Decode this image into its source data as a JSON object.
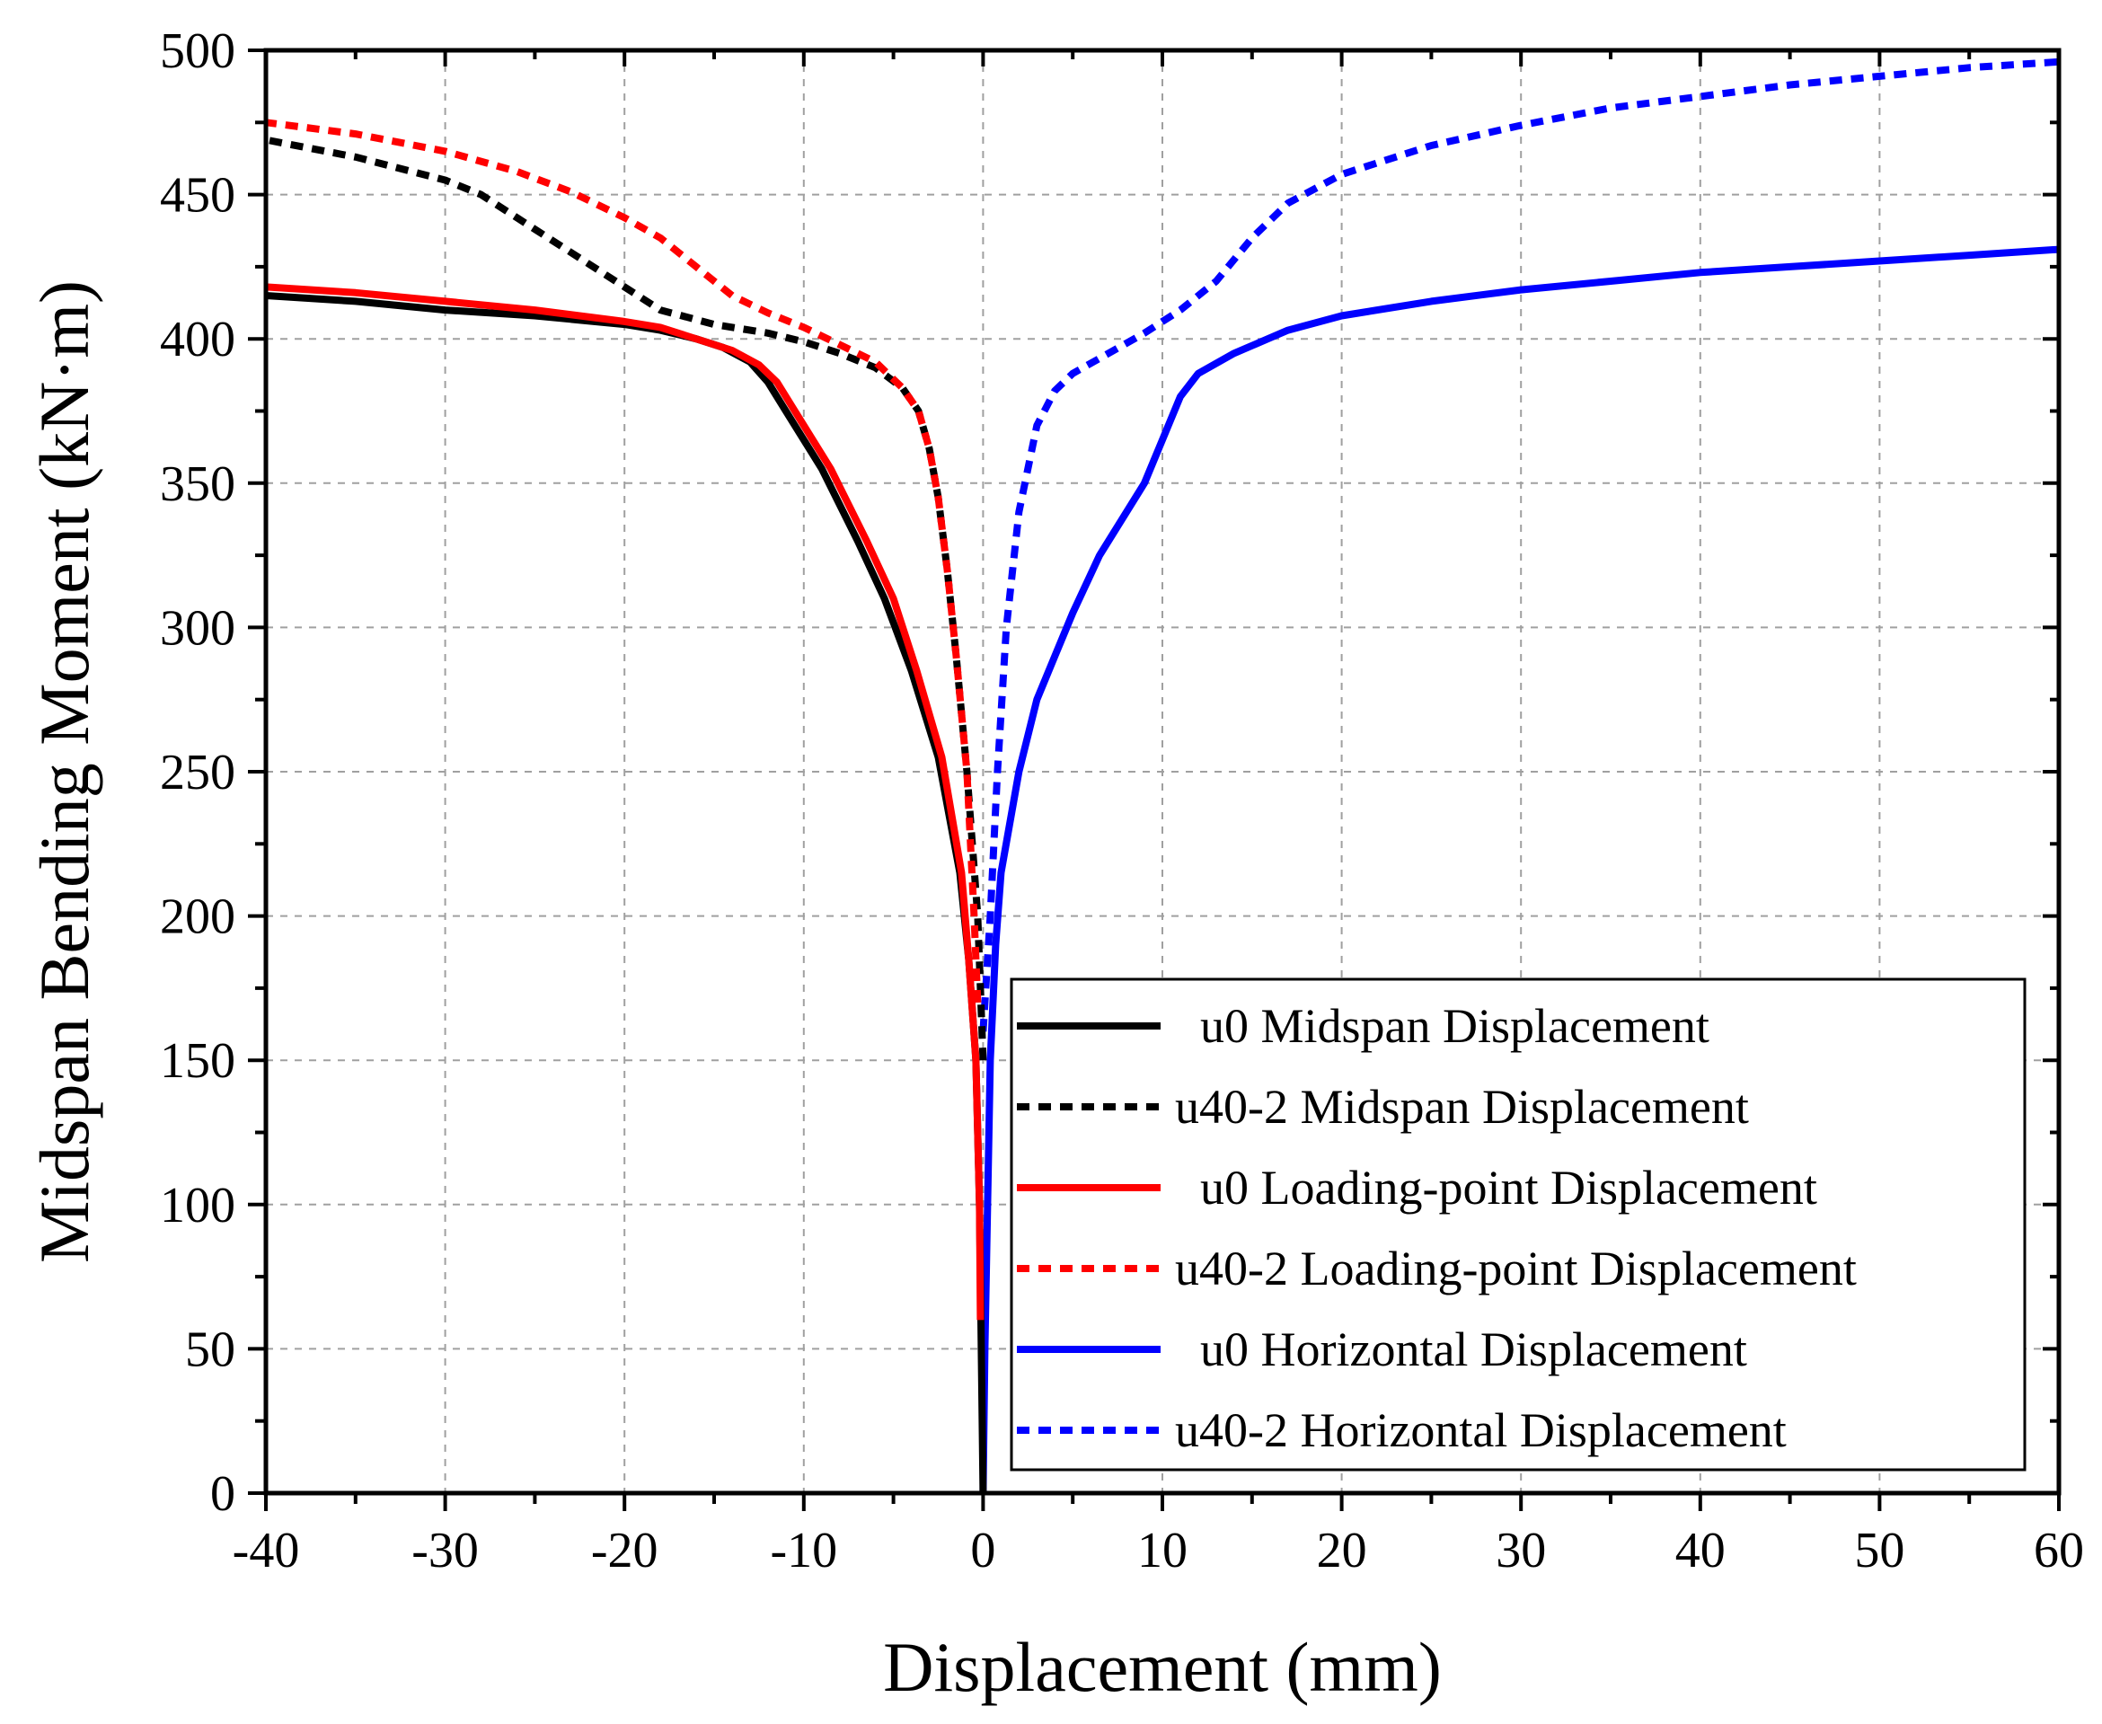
{
  "chart_data": {
    "type": "line",
    "title": "",
    "xlabel": "Displacement (mm)",
    "ylabel": "Midspan Bending Moment (kN·m)",
    "xlim": [
      -40,
      60
    ],
    "ylim": [
      0,
      500
    ],
    "xticks": [
      -40,
      -30,
      -20,
      -10,
      0,
      10,
      20,
      30,
      40,
      50,
      60
    ],
    "xtick_labels": [
      "-40",
      "-30",
      "-20",
      "-10",
      "0",
      "10",
      "20",
      "30",
      "40",
      "50",
      "60"
    ],
    "yticks": [
      0,
      50,
      100,
      150,
      200,
      250,
      300,
      350,
      400,
      450,
      500
    ],
    "ytick_labels": [
      "0",
      "50",
      "100",
      "150",
      "200",
      "250",
      "300",
      "350",
      "400",
      "450",
      "500"
    ],
    "grid": true,
    "legend_position": "bottom-right",
    "series": [
      {
        "name": "u0 Midspan Displacement",
        "color": "#000000",
        "style": "solid",
        "points": [
          [
            0,
            0
          ],
          [
            -0.1,
            50
          ],
          [
            -0.2,
            100
          ],
          [
            -0.4,
            150
          ],
          [
            -0.8,
            185
          ],
          [
            -1.3,
            215
          ],
          [
            -2.5,
            255
          ],
          [
            -4,
            285
          ],
          [
            -5.5,
            310
          ],
          [
            -7,
            330
          ],
          [
            -9,
            355
          ],
          [
            -11,
            375
          ],
          [
            -12,
            385
          ],
          [
            -13,
            392
          ],
          [
            -14.5,
            397
          ],
          [
            -16,
            400
          ],
          [
            -18,
            403
          ],
          [
            -20,
            405
          ],
          [
            -25,
            408
          ],
          [
            -30,
            410
          ],
          [
            -35,
            413
          ],
          [
            -40,
            415
          ]
        ]
      },
      {
        "name": "u40-2 Midspan Displacement",
        "color": "#000000",
        "style": "dashed",
        "points": [
          [
            0,
            150
          ],
          [
            -0.3,
            200
          ],
          [
            -0.9,
            250
          ],
          [
            -1.5,
            290
          ],
          [
            -2,
            320
          ],
          [
            -2.5,
            345
          ],
          [
            -3,
            362
          ],
          [
            -3.6,
            375
          ],
          [
            -4.5,
            383
          ],
          [
            -6,
            390
          ],
          [
            -8,
            395
          ],
          [
            -10,
            399
          ],
          [
            -12,
            402
          ],
          [
            -15,
            405
          ],
          [
            -18,
            410
          ],
          [
            -20,
            418
          ],
          [
            -23,
            430
          ],
          [
            -26,
            442
          ],
          [
            -28,
            450
          ],
          [
            -30,
            455
          ],
          [
            -35,
            463
          ],
          [
            -40,
            469
          ]
        ]
      },
      {
        "name": "u0 Loading-point Displacement",
        "color": "#ff0000",
        "style": "solid",
        "points": [
          [
            -0.15,
            60
          ],
          [
            -0.2,
            100
          ],
          [
            -0.4,
            150
          ],
          [
            -0.8,
            185
          ],
          [
            -1.2,
            215
          ],
          [
            -2.3,
            255
          ],
          [
            -3.7,
            285
          ],
          [
            -5,
            310
          ],
          [
            -6.5,
            330
          ],
          [
            -8.5,
            355
          ],
          [
            -10.5,
            375
          ],
          [
            -11.5,
            385
          ],
          [
            -12.5,
            391
          ],
          [
            -14,
            396
          ],
          [
            -16,
            400
          ],
          [
            -18,
            404
          ],
          [
            -20,
            406
          ],
          [
            -25,
            410
          ],
          [
            -30,
            413
          ],
          [
            -35,
            416
          ],
          [
            -40,
            418
          ]
        ]
      },
      {
        "name": "u40-2 Loading-point Displacement",
        "color": "#ff0000",
        "style": "dashed",
        "points": [
          [
            -0.3,
            170
          ],
          [
            -0.5,
            200
          ],
          [
            -0.9,
            250
          ],
          [
            -1.5,
            290
          ],
          [
            -2,
            320
          ],
          [
            -2.5,
            345
          ],
          [
            -3,
            362
          ],
          [
            -3.6,
            375
          ],
          [
            -4.5,
            383
          ],
          [
            -6,
            392
          ],
          [
            -8,
            398
          ],
          [
            -10,
            404
          ],
          [
            -12,
            409
          ],
          [
            -14,
            415
          ],
          [
            -16,
            425
          ],
          [
            -18,
            435
          ],
          [
            -20,
            442
          ],
          [
            -23,
            451
          ],
          [
            -26,
            458
          ],
          [
            -30,
            465
          ],
          [
            -35,
            471
          ],
          [
            -40,
            475
          ]
        ]
      },
      {
        "name": "u0 Horizontal Displacement",
        "color": "#0000ff",
        "style": "solid",
        "points": [
          [
            0,
            0
          ],
          [
            0.1,
            50
          ],
          [
            0.25,
            100
          ],
          [
            0.4,
            150
          ],
          [
            0.7,
            190
          ],
          [
            1,
            215
          ],
          [
            2,
            250
          ],
          [
            3,
            275
          ],
          [
            4,
            290
          ],
          [
            5,
            305
          ],
          [
            6.5,
            325
          ],
          [
            8,
            340
          ],
          [
            9,
            350
          ],
          [
            10,
            365
          ],
          [
            11,
            380
          ],
          [
            12,
            388
          ],
          [
            14,
            395
          ],
          [
            17,
            403
          ],
          [
            20,
            408
          ],
          [
            25,
            413
          ],
          [
            30,
            417
          ],
          [
            35,
            420
          ],
          [
            40,
            423
          ],
          [
            45,
            425
          ],
          [
            50,
            427
          ],
          [
            55,
            429
          ],
          [
            60,
            431
          ]
        ]
      },
      {
        "name": "u40-2 Horizontal Displacement",
        "color": "#0000ff",
        "style": "dashed",
        "points": [
          [
            0,
            160
          ],
          [
            0.4,
            200
          ],
          [
            0.8,
            250
          ],
          [
            1.3,
            300
          ],
          [
            2,
            340
          ],
          [
            3,
            370
          ],
          [
            4,
            382
          ],
          [
            5,
            388
          ],
          [
            7,
            395
          ],
          [
            9,
            402
          ],
          [
            11,
            410
          ],
          [
            13,
            420
          ],
          [
            15,
            435
          ],
          [
            17,
            447
          ],
          [
            20,
            457
          ],
          [
            25,
            467
          ],
          [
            30,
            474
          ],
          [
            35,
            480
          ],
          [
            40,
            484
          ],
          [
            45,
            488
          ],
          [
            50,
            491
          ],
          [
            55,
            494
          ],
          [
            60,
            496
          ]
        ]
      }
    ]
  }
}
